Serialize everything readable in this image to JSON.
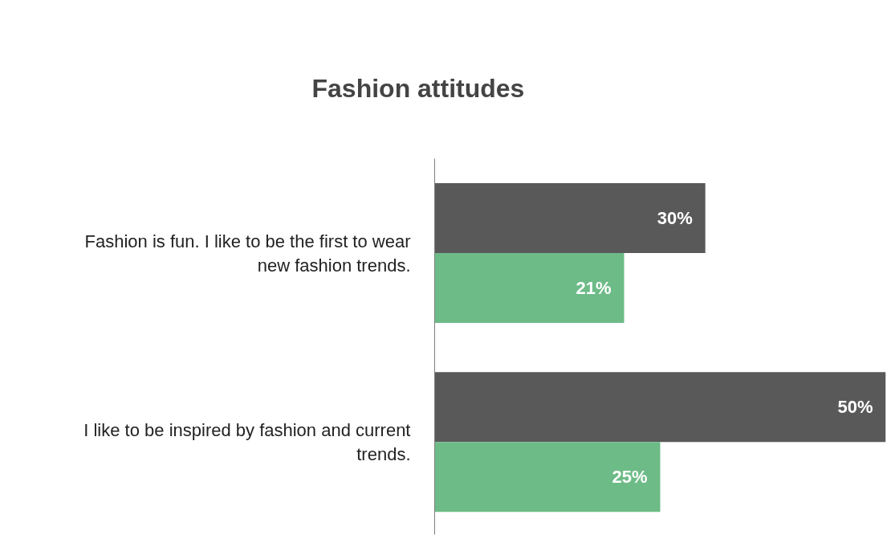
{
  "chart_data": {
    "type": "bar",
    "orientation": "horizontal",
    "title": "Fashion attitudes",
    "categories": [
      "Fashion is fun. I like to be the first to wear new fashion trends.",
      "I like to be inspired by fashion and current trends."
    ],
    "series": [
      {
        "color": "#595959",
        "values": [
          30,
          50
        ],
        "value_labels": [
          "30%",
          "50%"
        ]
      },
      {
        "color": "#6dbb87",
        "values": [
          21,
          25
        ],
        "value_labels": [
          "21%",
          "25%"
        ]
      }
    ],
    "grid": false,
    "tick_labels": "y"
  }
}
